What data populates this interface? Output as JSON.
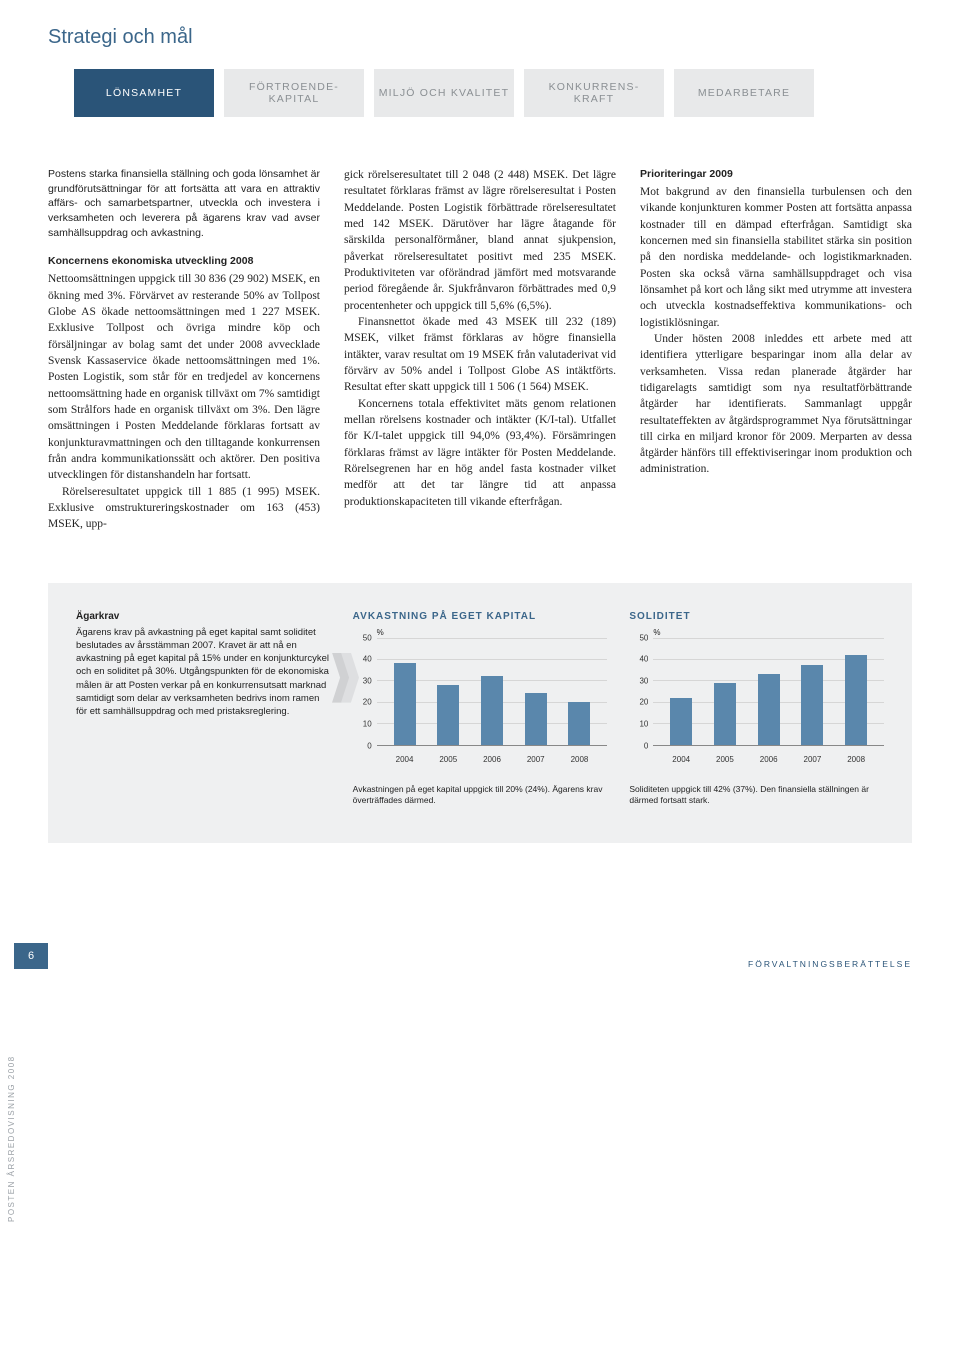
{
  "heading": "Strategi och mål",
  "tabs": [
    {
      "label": "LÖNSAMHET",
      "active": true
    },
    {
      "label": "FÖRTROENDE- KAPITAL",
      "active": false
    },
    {
      "label": "MILJÖ OCH KVALITET",
      "active": false
    },
    {
      "label": "KONKURRENS- KRAFT",
      "active": false
    },
    {
      "label": "MEDARBETARE",
      "active": false
    }
  ],
  "col1": {
    "intro": "Postens starka finansiella ställning och goda lönsamhet är grundförutsättningar för att fortsätta att vara en attraktiv affärs- och samarbetspartner, utveckla och investera i verksamheten och leverera på ägarens krav vad avser samhällsuppdrag och avkastning.",
    "subhead": "Koncernens ekonomiska utveckling 2008",
    "body1": "Nettoomsättningen uppgick till 30 836 (29 902) MSEK, en ökning med 3%. Förvärvet av resterande 50% av Tollpost Globe AS ökade nettoomsättningen med 1 227 MSEK. Exklusive Tollpost och övriga mindre köp och försäljningar av bolag samt det under 2008 avvecklade Svensk Kassaservice ökade nettoomsättningen med 1%. Posten Logistik, som står för en tredjedel av koncernens nettoomsättning hade en organisk tillväxt om 7% samtidigt som Strålfors hade en organisk tillväxt om 3%. Den lägre omsättningen i Posten Meddelande förklaras fortsatt av konjunkturavmattningen och den tilltagande konkurrensen från andra kommunikationssätt och aktörer. Den positiva utvecklingen för distanshandeln har fortsatt.",
    "body2": "Rörelseresultatet uppgick till 1 885 (1 995) MSEK. Exklusive omstruktureringskostnader om 163 (453) MSEK, upp-"
  },
  "col2": {
    "body1": "gick rörelseresultatet till 2 048 (2 448) MSEK. Det lägre resultatet förklaras främst av lägre rörelseresultat i Posten Meddelande. Posten Logistik förbättrade rörelseresultatet med 142 MSEK. Därutöver har lägre åtagande för särskilda personalförmåner, bland annat sjukpension, påverkat rörelseresultatet positivt med 235 MSEK. Produktiviteten var oförändrad jämfört med motsvarande period föregående år. Sjukfrånvaron förbättrades med 0,9 procentenheter och uppgick till 5,6% (6,5%).",
    "body2": "Finansnettot ökade med 43 MSEK till 232 (189) MSEK, vilket främst förklaras av högre finansiella intäkter, varav resultat om 19 MSEK från valutaderivat vid förvärv av 50% andel i Tollpost Globe AS intäktförts. Resultat efter skatt uppgick till 1 506 (1 564) MSEK.",
    "body3": "Koncernens totala effektivitet mäts genom relationen mellan rörelsens kostnader och intäkter (K/I-tal). Utfallet för K/I-talet uppgick till 94,0% (93,4%). Försämringen förklaras främst av lägre intäkter för Posten Meddelande. Rörelsegrenen har en hög andel fasta kostnader vilket medför att det tar längre tid att anpassa produktionskapaciteten till vikande efterfrågan."
  },
  "col3": {
    "subhead": "Prioriteringar 2009",
    "body1": "Mot bakgrund av den finansiella turbulensen och den vikande konjunkturen kommer Posten att fortsätta anpassa kostnader till en dämpad efterfrågan. Samtidigt ska koncernen med sin finansiella stabilitet stärka sin position på den nordiska meddelande- och logistikmarknaden. Posten ska också värna samhällsuppdraget och visa lönsamhet på kort och lång sikt med utrymme att investera och utveckla kostnadseffektiva kommunikations- och logistiklösningar.",
    "body2": "Under hösten 2008 inleddes ett arbete med att identifiera ytterligare besparingar inom alla delar av verksamheten. Vissa redan planerade åtgärder har tidigarelagts samtidigt som nya resultatförbättrande åtgärder har identifierats. Sammanlagt uppgår resultateffekten av åtgärdsprogrammet Nya förutsättningar till cirka en miljard kronor för 2009. Merparten av dessa åtgärder hänförs till effektiviseringar inom produktion och administration."
  },
  "agarkrav": {
    "title": "Ägarkrav",
    "text": "Ägarens krav på avkastning på eget kapital samt soliditet beslutades av årsstämman 2007. Kravet är att nå en avkastning på eget kapital på 15% under en konjunkturcykel och en soliditet på 30%. Utgångspunkten för de ekonomiska målen är att Posten verkar på en konkurrensutsatt marknad samtidigt som delar av verksamheten bedrivs inom ramen för ett samhällsuppdrag och med pristaksreglering."
  },
  "chart1": {
    "title": "AVKASTNING PÅ EGET KAPITAL",
    "unit": "%",
    "ylim": [
      0,
      50
    ],
    "ytick_step": 10,
    "categories": [
      "2004",
      "2005",
      "2006",
      "2007",
      "2008"
    ],
    "values": [
      38,
      28,
      32,
      24,
      20
    ],
    "bar_color": "#5a87ac",
    "grid_color": "#d6d6d6",
    "caption": "Avkastningen på eget kapital uppgick till 20% (24%). Ägarens krav överträffades därmed."
  },
  "chart2": {
    "title": "SOLIDITET",
    "unit": "%",
    "ylim": [
      0,
      50
    ],
    "ytick_step": 10,
    "categories": [
      "2004",
      "2005",
      "2006",
      "2007",
      "2008"
    ],
    "values": [
      22,
      29,
      33,
      37,
      42
    ],
    "bar_color": "#5a87ac",
    "grid_color": "#d6d6d6",
    "caption": "Soliditeten uppgick till 42% (37%). Den finansiella ställningen är därmed fortsatt stark."
  },
  "side_text": "POSTEN ÅRSREDOVISNING 2008",
  "page_number": "6",
  "footer_right": "FÖRVALTNINGSBERÄTTELSE"
}
